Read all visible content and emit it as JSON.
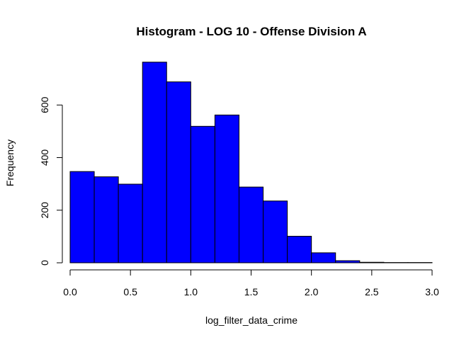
{
  "chart_data": {
    "type": "bar",
    "title": "Histogram - LOG 10 - Offense Division A",
    "xlabel": "log_filter_data_crime",
    "ylabel": "Frequency",
    "bin_edges": [
      0.0,
      0.2,
      0.4,
      0.6,
      0.8,
      1.0,
      1.2,
      1.4,
      1.6,
      1.8,
      2.0,
      2.2,
      2.4,
      2.6,
      2.8,
      3.0
    ],
    "values": [
      347,
      327,
      299,
      763,
      688,
      519,
      562,
      288,
      235,
      101,
      38,
      8,
      2,
      1,
      1
    ],
    "xlim": [
      0,
      3
    ],
    "ylim": [
      0,
      800
    ],
    "x_ticks": [
      0.0,
      0.5,
      1.0,
      1.5,
      2.0,
      2.5,
      3.0
    ],
    "x_tick_labels": [
      "0.0",
      "0.5",
      "1.0",
      "1.5",
      "2.0",
      "2.5",
      "3.0"
    ],
    "y_ticks": [
      0,
      200,
      400,
      600
    ],
    "y_tick_labels": [
      "0",
      "200",
      "400",
      "600"
    ],
    "bar_color": "#0000ff",
    "bar_edge_color": "#000000",
    "grid": false
  }
}
